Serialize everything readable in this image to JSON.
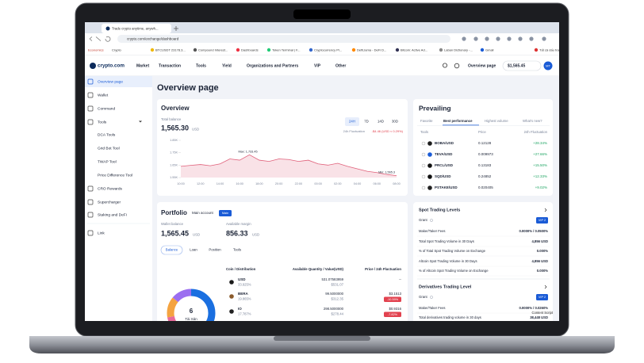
{
  "browser": {
    "tab_title": "Trade crypto anytime, anywh...",
    "url": "crypto.com/exchange/dashboard",
    "bookmarks": [
      "Economics",
      "Crypto",
      "BTCUSDT 23178.3...",
      "Compound Interest...",
      "Dashboards",
      "Token Terminal | F...",
      "Cryptocurrency Pr...",
      "DefiLlama - DeFi D...",
      "Bitcoin: Active Ad...",
      "Laban Dictionary -...",
      "Gmail",
      "Tất cả dấu trang"
    ]
  },
  "nav": {
    "logo": "crypto.com",
    "items": [
      "Market",
      "Transaction",
      "Tools",
      "Yield",
      "Organizations and Partners",
      "VIP",
      "Other"
    ],
    "overview": "Overview page",
    "balance": "$1,565.45",
    "avatar": "MT"
  },
  "sidebar": [
    "Overview page",
    "Wallet",
    "Command",
    "Tools",
    "DCA Tools",
    "Grid Bot Tool",
    "TWAP Tool",
    "Price Difference Tool",
    "CRO Rewards",
    "Supercharger",
    "Staking and DeFi",
    "Link"
  ],
  "page_title": "Overview page",
  "overview": {
    "title": "Overview",
    "balance_label": "Total balance",
    "balance": "1,565.30",
    "currency": "USD",
    "ranges": [
      "24H",
      "7D",
      "14D",
      "30D"
    ],
    "fluct_label": "24h Fluctuation",
    "fluct": "-$4.46 (USD ≈ 0.29%)",
    "chart": {
      "type": "line",
      "color": "#e0607a",
      "yticks": [
        {
          "value": 1850,
          "label": "1.85K"
        },
        {
          "value": 1750,
          "label": "1.75K"
        },
        {
          "value": 1650,
          "label": "1.65K"
        },
        {
          "value": 1550,
          "label": "1.55K"
        }
      ],
      "ylim": [
        1550,
        1850
      ],
      "xticks": [
        "10:00",
        "12:00",
        "14:00",
        "16:00",
        "18:00",
        "20:00",
        "22:00",
        "00:00",
        "02:00",
        "04:00",
        "06:00",
        "08:00"
      ],
      "values": [
        1640,
        1648,
        1655,
        1645,
        1660,
        1700,
        1690,
        1733,
        1690,
        1680,
        1700,
        1695,
        1680,
        1690,
        1660,
        1650,
        1665,
        1640,
        1620,
        1600,
        1590,
        1575,
        1565
      ],
      "max_label": "Max: 1,733.45",
      "min_label": "Min: 1,565.3"
    }
  },
  "prevailing": {
    "title": "Prevailing",
    "tabs": [
      "Favorite",
      "Best performance",
      "Highest volume",
      "What's new?"
    ],
    "columns": [
      "Tools",
      "Price",
      "24h Fluctuation"
    ],
    "rows": [
      [
        "BOBA/USD",
        "0.12128",
        "+28.34%"
      ],
      [
        "TEVA/USD",
        "0.009973",
        "+27.66%"
      ],
      [
        "PRCL/USD",
        "0.13183",
        "+15.50%"
      ],
      [
        "SQD/USD",
        "0.24852",
        "+12.33%"
      ],
      [
        "PSTAKE/USD",
        "0.020405",
        "+9.02%"
      ]
    ]
  },
  "portfolio": {
    "title": "Portfolio",
    "account": "Main account",
    "badge": "Main",
    "wallet_label": "Wallet balance",
    "wallet": "1,565.45",
    "wallet_currency": "USD",
    "margin_label": "Available margin",
    "margin": "856.33",
    "margin_currency": "USD",
    "tabs": [
      "Balance",
      "Loan",
      "Position",
      "Tools"
    ],
    "columns": [
      "Coin / Distribution",
      "Available Quantity / Value(USD)",
      "Price / 24h Fluctuation"
    ],
    "rows": [
      [
        "USD",
        "33.925%",
        "531.07583959",
        "$531.07",
        "--",
        ""
      ],
      [
        "BERA",
        "19.865%",
        "99.5000000",
        "$312.35",
        "$3.1513",
        "-10.59%"
      ],
      [
        "IO",
        "17.787%",
        "298.5000000",
        "$278.44",
        "$0.9316",
        "-7.82%"
      ]
    ],
    "donut_count": "6",
    "donut_label": "Tài Sản"
  },
  "spot": {
    "title": "Spot Trading Levels",
    "grant": "Grant",
    "vip": "VIP 2",
    "rows": [
      [
        "Maker/Taker Fees",
        "0.0000% / 0.0500%"
      ],
      [
        "Total Spot Trading Volume in 30 Days",
        "4,856 USD"
      ],
      [
        "% of Total Spot Trading Volume on Exchange",
        "0.000%"
      ],
      [
        "Altcoin Spot Trading Volume in 30 Days",
        "4,856 USD"
      ],
      [
        "% of Altcoin Spot Trading Volume on Exchange",
        "0.000%"
      ]
    ]
  },
  "derivatives": {
    "title": "Derivatives Trading Level",
    "grant": "Grant",
    "vip": "VIP 2",
    "rows": [
      [
        "Maker/Taker Fees",
        "0.0000% / 0.0260%"
      ],
      [
        "Total derivatives trading volume in 30 days",
        "38,448 USD"
      ]
    ],
    "overlay": "Content Script"
  }
}
